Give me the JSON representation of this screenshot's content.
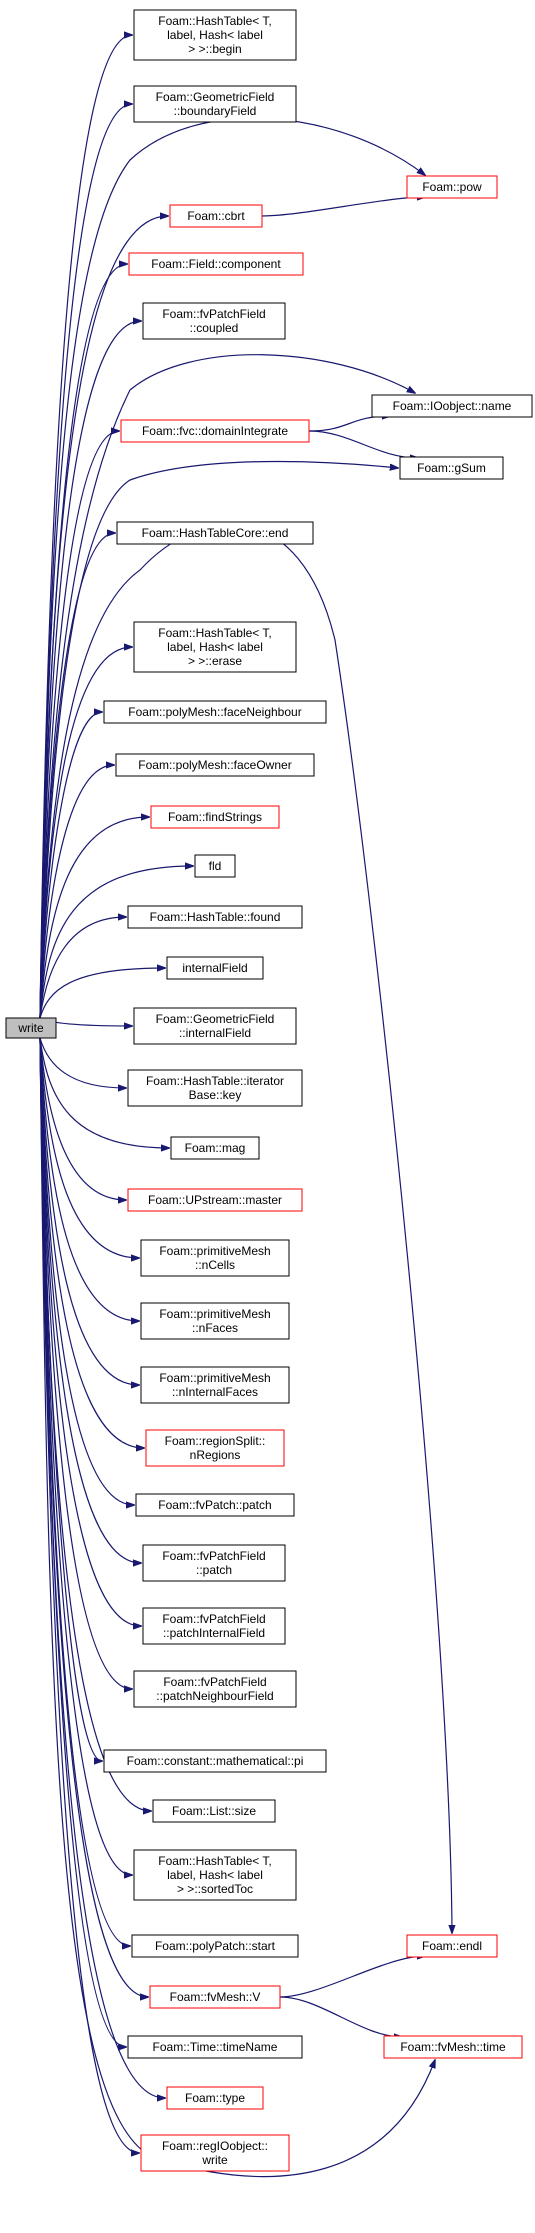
{
  "graph": {
    "root": {
      "label": "write"
    },
    "nodes": [
      {
        "id": "n_begin",
        "lines": [
          "Foam::HashTable< T,",
          "label, Hash< label",
          "> >::begin"
        ],
        "red": false
      },
      {
        "id": "n_boundaryField",
        "lines": [
          "Foam::GeometricField",
          "::boundaryField"
        ],
        "red": false
      },
      {
        "id": "n_pow",
        "lines": [
          "Foam::pow"
        ],
        "red": true
      },
      {
        "id": "n_cbrt",
        "lines": [
          "Foam::cbrt"
        ],
        "red": true
      },
      {
        "id": "n_component",
        "lines": [
          "Foam::Field::component"
        ],
        "red": true
      },
      {
        "id": "n_coupled",
        "lines": [
          "Foam::fvPatchField",
          "::coupled"
        ],
        "red": false
      },
      {
        "id": "n_ioname",
        "lines": [
          "Foam::IOobject::name"
        ],
        "red": false
      },
      {
        "id": "n_domainIntegrate",
        "lines": [
          "Foam::fvc::domainIntegrate"
        ],
        "red": true
      },
      {
        "id": "n_gSum",
        "lines": [
          "Foam::gSum"
        ],
        "red": false
      },
      {
        "id": "n_end",
        "lines": [
          "Foam::HashTableCore::end"
        ],
        "red": false
      },
      {
        "id": "n_erase",
        "lines": [
          "Foam::HashTable< T,",
          "label, Hash< label",
          "> >::erase"
        ],
        "red": false
      },
      {
        "id": "n_faceNeighbour",
        "lines": [
          "Foam::polyMesh::faceNeighbour"
        ],
        "red": false
      },
      {
        "id": "n_faceOwner",
        "lines": [
          "Foam::polyMesh::faceOwner"
        ],
        "red": false
      },
      {
        "id": "n_findStrings",
        "lines": [
          "Foam::findStrings"
        ],
        "red": true
      },
      {
        "id": "n_fld",
        "lines": [
          "fld"
        ],
        "red": false
      },
      {
        "id": "n_found",
        "lines": [
          "Foam::HashTable::found"
        ],
        "red": false
      },
      {
        "id": "n_internalField1",
        "lines": [
          "internalField"
        ],
        "red": false
      },
      {
        "id": "n_internalField2",
        "lines": [
          "Foam::GeometricField",
          "::internalField"
        ],
        "red": false
      },
      {
        "id": "n_key",
        "lines": [
          "Foam::HashTable::iterator",
          "Base::key"
        ],
        "red": false
      },
      {
        "id": "n_mag",
        "lines": [
          "Foam::mag"
        ],
        "red": false
      },
      {
        "id": "n_master",
        "lines": [
          "Foam::UPstream::master"
        ],
        "red": true
      },
      {
        "id": "n_nCells",
        "lines": [
          "Foam::primitiveMesh",
          "::nCells"
        ],
        "red": false
      },
      {
        "id": "n_nFaces",
        "lines": [
          "Foam::primitiveMesh",
          "::nFaces"
        ],
        "red": false
      },
      {
        "id": "n_nInternalFaces",
        "lines": [
          "Foam::primitiveMesh",
          "::nInternalFaces"
        ],
        "red": false
      },
      {
        "id": "n_nRegions",
        "lines": [
          "Foam::regionSplit::",
          "nRegions"
        ],
        "red": true
      },
      {
        "id": "n_fvPatch_patch",
        "lines": [
          "Foam::fvPatch::patch"
        ],
        "red": false
      },
      {
        "id": "n_fvPatchField_patch",
        "lines": [
          "Foam::fvPatchField",
          "::patch"
        ],
        "red": false
      },
      {
        "id": "n_patchInternalField",
        "lines": [
          "Foam::fvPatchField",
          "::patchInternalField"
        ],
        "red": false
      },
      {
        "id": "n_patchNeighbourField",
        "lines": [
          "Foam::fvPatchField",
          "::patchNeighbourField"
        ],
        "red": false
      },
      {
        "id": "n_pi",
        "lines": [
          "Foam::constant::mathematical::pi"
        ],
        "red": false
      },
      {
        "id": "n_size",
        "lines": [
          "Foam::List::size"
        ],
        "red": false
      },
      {
        "id": "n_sortedToc",
        "lines": [
          "Foam::HashTable< T,",
          "label, Hash< label",
          "> >::sortedToc"
        ],
        "red": false
      },
      {
        "id": "n_start",
        "lines": [
          "Foam::polyPatch::start"
        ],
        "red": false
      },
      {
        "id": "n_endl",
        "lines": [
          "Foam::endl"
        ],
        "red": true
      },
      {
        "id": "n_V",
        "lines": [
          "Foam::fvMesh::V"
        ],
        "red": true
      },
      {
        "id": "n_timeName",
        "lines": [
          "Foam::Time::timeName"
        ],
        "red": false
      },
      {
        "id": "n_time",
        "lines": [
          "Foam::fvMesh::time"
        ],
        "red": true
      },
      {
        "id": "n_type",
        "lines": [
          "Foam::type"
        ],
        "red": true
      },
      {
        "id": "n_write",
        "lines": [
          "Foam::regIOobject::",
          "write"
        ],
        "red": true
      }
    ],
    "edges": [
      {
        "from": "root",
        "to": "n_begin"
      },
      {
        "from": "root",
        "to": "n_boundaryField"
      },
      {
        "from": "root",
        "to": "n_pow"
      },
      {
        "from": "root",
        "to": "n_cbrt"
      },
      {
        "from": "n_cbrt",
        "to": "n_pow"
      },
      {
        "from": "root",
        "to": "n_component"
      },
      {
        "from": "root",
        "to": "n_coupled"
      },
      {
        "from": "root",
        "to": "n_ioname"
      },
      {
        "from": "root",
        "to": "n_domainIntegrate"
      },
      {
        "from": "n_domainIntegrate",
        "to": "n_ioname"
      },
      {
        "from": "n_domainIntegrate",
        "to": "n_gSum"
      },
      {
        "from": "root",
        "to": "n_gSum"
      },
      {
        "from": "root",
        "to": "n_end"
      },
      {
        "from": "root",
        "to": "n_endl"
      },
      {
        "from": "root",
        "to": "n_erase"
      },
      {
        "from": "root",
        "to": "n_faceNeighbour"
      },
      {
        "from": "root",
        "to": "n_faceOwner"
      },
      {
        "from": "root",
        "to": "n_findStrings"
      },
      {
        "from": "root",
        "to": "n_fld"
      },
      {
        "from": "root",
        "to": "n_found"
      },
      {
        "from": "root",
        "to": "n_internalField1"
      },
      {
        "from": "root",
        "to": "n_internalField2"
      },
      {
        "from": "root",
        "to": "n_key"
      },
      {
        "from": "root",
        "to": "n_mag"
      },
      {
        "from": "root",
        "to": "n_master"
      },
      {
        "from": "root",
        "to": "n_nCells"
      },
      {
        "from": "root",
        "to": "n_nFaces"
      },
      {
        "from": "root",
        "to": "n_nInternalFaces"
      },
      {
        "from": "root",
        "to": "n_nRegions"
      },
      {
        "from": "root",
        "to": "n_fvPatch_patch"
      },
      {
        "from": "root",
        "to": "n_fvPatchField_patch"
      },
      {
        "from": "root",
        "to": "n_patchInternalField"
      },
      {
        "from": "root",
        "to": "n_patchNeighbourField"
      },
      {
        "from": "root",
        "to": "n_pi"
      },
      {
        "from": "root",
        "to": "n_size"
      },
      {
        "from": "root",
        "to": "n_sortedToc"
      },
      {
        "from": "root",
        "to": "n_start"
      },
      {
        "from": "root",
        "to": "n_V"
      },
      {
        "from": "n_V",
        "to": "n_endl"
      },
      {
        "from": "n_V",
        "to": "n_time"
      },
      {
        "from": "root",
        "to": "n_timeName"
      },
      {
        "from": "root",
        "to": "n_time"
      },
      {
        "from": "root",
        "to": "n_type"
      },
      {
        "from": "root",
        "to": "n_write"
      }
    ]
  }
}
